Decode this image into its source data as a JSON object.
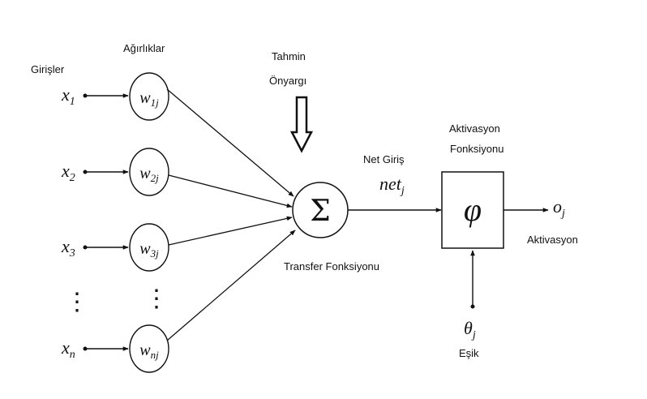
{
  "labels": {
    "inputs_title": "Girişler",
    "weights_title": "Ağırlıklar",
    "bias_line1": "Tahmin",
    "bias_line2": "Önyargı",
    "net_input_title": "Net Giriş",
    "transfer_function": "Transfer Fonksiyonu",
    "activation_fn_line1": "Aktivasyon",
    "activation_fn_line2": "Fonksiyonu",
    "activation_output": "Aktivasyon",
    "threshold": "Eşik"
  },
  "inputs": [
    {
      "base": "x",
      "sub": "1"
    },
    {
      "base": "x",
      "sub": "2"
    },
    {
      "base": "x",
      "sub": "3"
    },
    {
      "base": "x",
      "sub": "n"
    }
  ],
  "weights": [
    {
      "base": "w",
      "sub": "1j"
    },
    {
      "base": "w",
      "sub": "2j"
    },
    {
      "base": "w",
      "sub": "3j"
    },
    {
      "base": "w",
      "sub": "nj"
    }
  ],
  "symbols": {
    "ellipsis": "⋮",
    "sum": "Σ",
    "activation": "φ",
    "net_base": "net",
    "net_sub": "j",
    "output_base": "o",
    "output_sub": "j",
    "theta_base": "θ",
    "theta_sub": "j"
  }
}
